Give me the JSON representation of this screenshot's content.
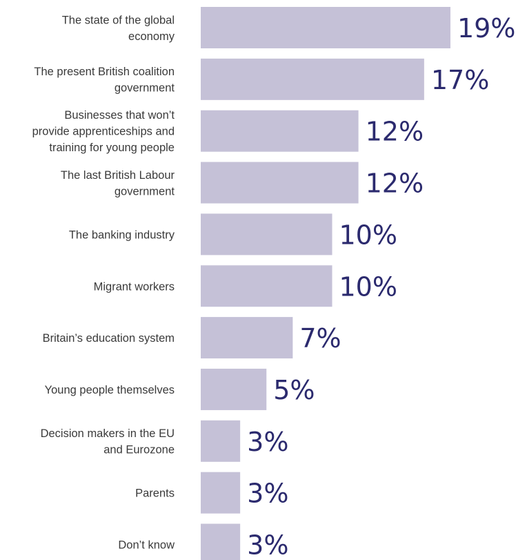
{
  "chart_data": {
    "type": "bar",
    "orientation": "horizontal",
    "title": "",
    "xlabel": "",
    "ylabel": "",
    "xlim": [
      0,
      19
    ],
    "grid": false,
    "legend": "none",
    "bar_color": "#c5c1d7",
    "value_label_color": "#2b2a6e",
    "categories": [
      [
        "The state of the global",
        "economy"
      ],
      [
        "The present British coalition",
        "government"
      ],
      [
        "Businesses that won’t",
        "provide apprenticeships and",
        "training for young people"
      ],
      [
        "The last British Labour",
        "government"
      ],
      [
        "The banking industry"
      ],
      [
        "Migrant workers"
      ],
      [
        "Britain’s education system"
      ],
      [
        "Young people themselves"
      ],
      [
        "Decision makers in the EU",
        "and Eurozone"
      ],
      [
        "Parents"
      ],
      [
        "Don’t know"
      ]
    ],
    "values": [
      19,
      17,
      12,
      12,
      10,
      10,
      7,
      5,
      3,
      3,
      3
    ],
    "value_labels": [
      "19%",
      "17%",
      "12%",
      "12%",
      "10%",
      "10%",
      "7%",
      "5%",
      "3%",
      "3%",
      "3%"
    ]
  }
}
